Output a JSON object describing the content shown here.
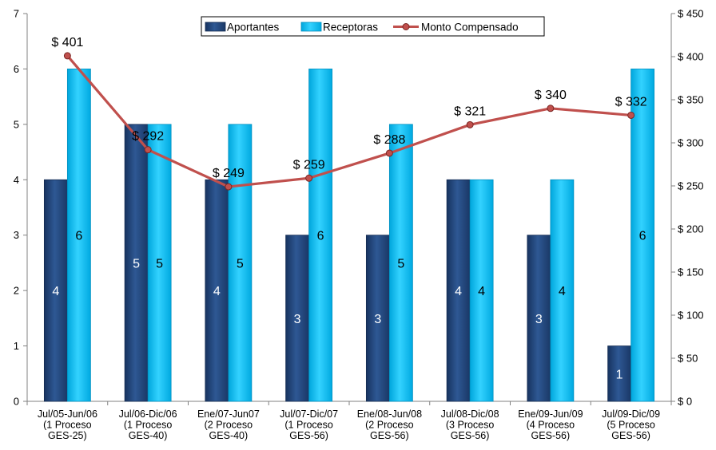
{
  "chart_data": {
    "type": "bar",
    "categories": [
      [
        "Jul/05-Jun/06",
        "(1  Proceso",
        "GES-25)"
      ],
      [
        "Jul/06-Dic/06",
        "(1  Proceso",
        "GES-40)"
      ],
      [
        "Ene/07-Jun07",
        "(2  Proceso",
        "GES-40)"
      ],
      [
        "Jul/07-Dic/07",
        "(1  Proceso",
        "GES-56)"
      ],
      [
        "Ene/08-Jun/08",
        "(2  Proceso",
        "GES-56)"
      ],
      [
        "Jul/08-Dic/08",
        "(3  Proceso",
        "GES-56)"
      ],
      [
        "Ene/09-Jun/09",
        "(4  Proceso",
        "GES-56)"
      ],
      [
        "Jul/09-Dic/09",
        "(5  Proceso",
        "GES-56)"
      ]
    ],
    "series": [
      {
        "name": "Aportantes",
        "type": "bar",
        "axis": "left",
        "color": "#1F3F73",
        "values": [
          4,
          5,
          4,
          3,
          3,
          4,
          3,
          1
        ],
        "labels": [
          "4",
          "5",
          "4",
          "3",
          "3",
          "4",
          "3",
          "1"
        ]
      },
      {
        "name": "Receptoras",
        "type": "bar",
        "axis": "left",
        "color": "#00B8F0",
        "values": [
          6,
          5,
          5,
          6,
          5,
          4,
          4,
          6
        ],
        "labels": [
          "6",
          "5",
          "5",
          "6",
          "5",
          "4",
          "4",
          "6"
        ]
      },
      {
        "name": "Monto Compensado",
        "type": "line",
        "axis": "right",
        "color": "#C0504D",
        "values": [
          401,
          292,
          249,
          259,
          288,
          321,
          340,
          332
        ],
        "labels": [
          "$ 401",
          "$ 292",
          "$ 249",
          "$ 259",
          "$ 288",
          "$ 321",
          "$ 340",
          "$ 332"
        ]
      }
    ],
    "y_left": {
      "range": [
        0,
        7
      ],
      "ticks": [
        "0",
        "1",
        "2",
        "3",
        "4",
        "5",
        "6",
        "7"
      ]
    },
    "y_right": {
      "range": [
        0,
        450
      ],
      "ticks": [
        "$ 0",
        "$ 50",
        "$ 100",
        "$ 150",
        "$ 200",
        "$ 250",
        "$ 300",
        "$ 350",
        "$ 400",
        "$ 450"
      ]
    },
    "grid": false,
    "legend": "top-center"
  }
}
